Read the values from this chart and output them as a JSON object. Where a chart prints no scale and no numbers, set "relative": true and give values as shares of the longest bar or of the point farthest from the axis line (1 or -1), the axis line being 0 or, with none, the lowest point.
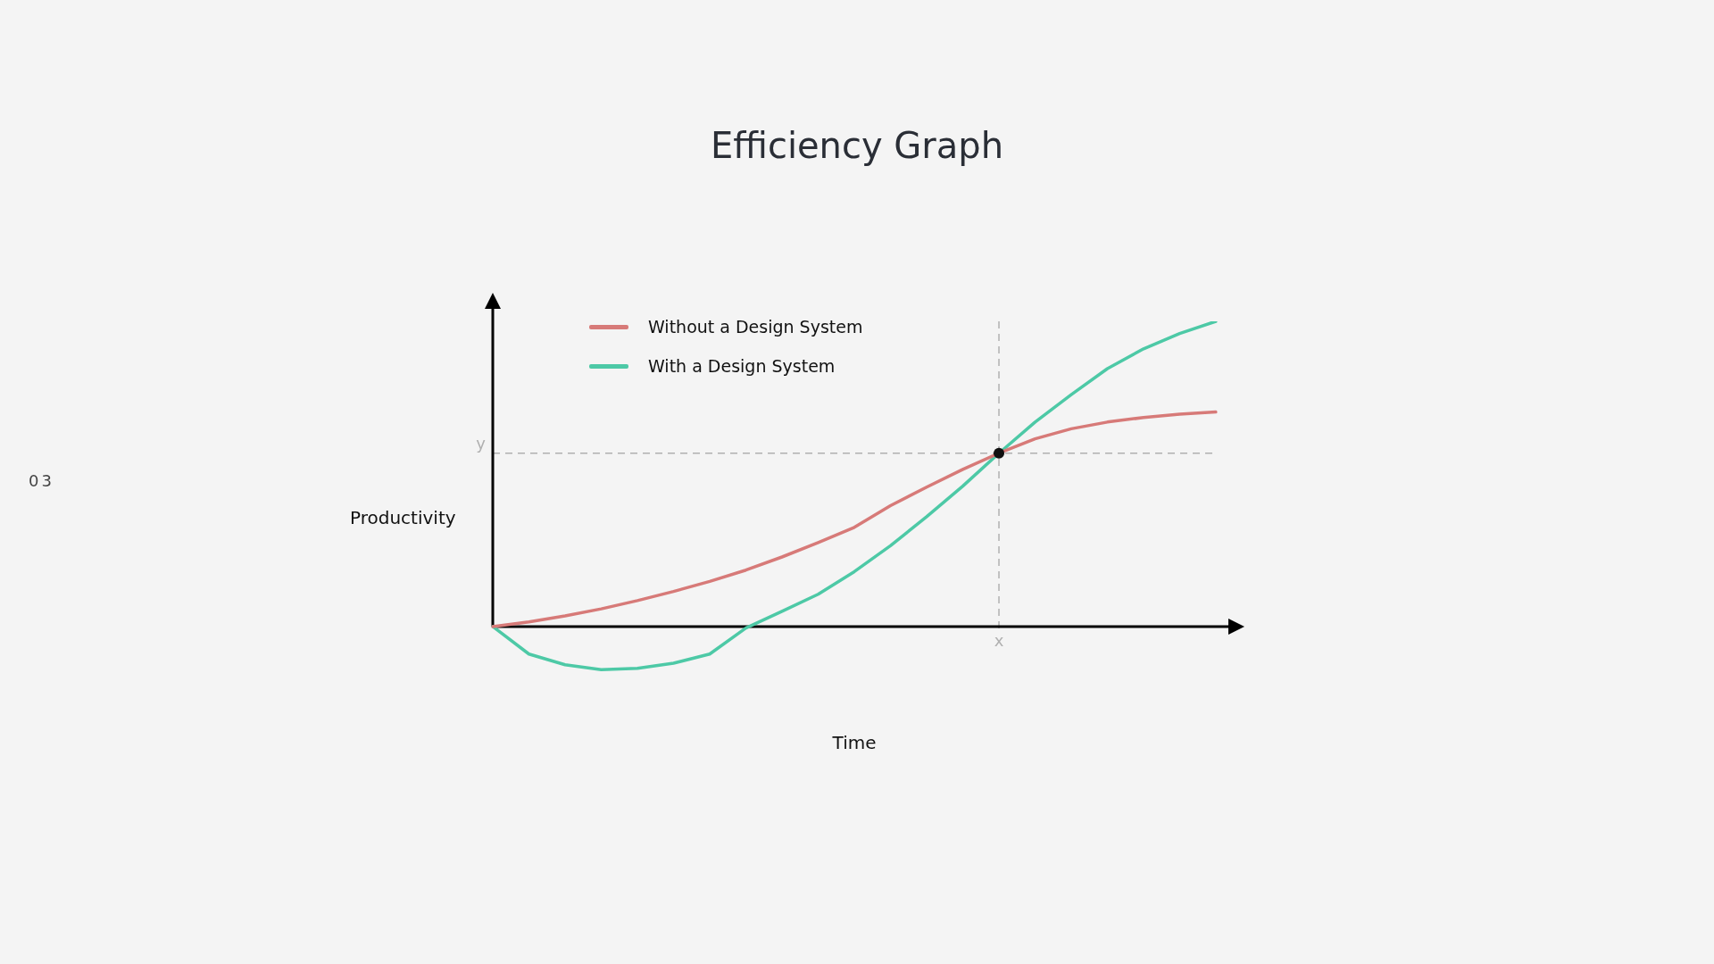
{
  "chart_data": {
    "type": "line",
    "title": "Efficiency  Graph",
    "xlabel": "Time",
    "ylabel": "Productivity",
    "relative": true,
    "legend": "top left",
    "grid": false,
    "line_style": "solid",
    "marker": "none",
    "categories": [
      null,
      null,
      null,
      null,
      null,
      null,
      null,
      null,
      null,
      null,
      null,
      null,
      null,
      null,
      null,
      null,
      null,
      null,
      null,
      null,
      null
    ],
    "series": [
      {
        "name": "Without a Design System",
        "color": "#d77a78",
        "values": [
          0,
          0.015,
          0.035,
          0.058,
          0.085,
          0.115,
          0.148,
          0.185,
          0.228,
          0.275,
          0.325,
          0.396,
          0.457,
          0.515,
          0.568,
          0.615,
          0.648,
          0.67,
          0.685,
          0.696,
          0.703
        ]
      },
      {
        "name": "With a Design System",
        "color": "#4dc9a6",
        "values": [
          0,
          -0.09,
          -0.125,
          -0.141,
          -0.137,
          -0.12,
          -0.09,
          -0.005,
          0.05,
          0.106,
          0.18,
          0.265,
          0.36,
          0.46,
          0.568,
          0.67,
          0.76,
          0.845,
          0.91,
          0.96,
          1
        ]
      }
    ],
    "ref_lines": [
      {
        "axis": "y",
        "value": 0.568,
        "label": "y",
        "color": "#b0b0b0",
        "line_style": "dashed"
      }
    ],
    "annotations": [
      "03",
      "x"
    ]
  }
}
